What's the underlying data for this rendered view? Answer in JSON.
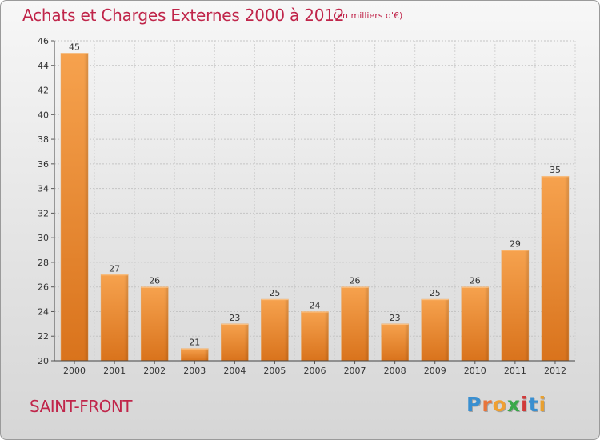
{
  "header": {
    "title": "Achats et Charges Externes 2000 à 2012",
    "unit": "(en milliers d'€)"
  },
  "footer": {
    "place": "SAINT-FRONT",
    "logo_text": "Proxiti"
  },
  "logo_colors": [
    "#3a8fd0",
    "#e8743b",
    "#f0a030",
    "#3aa84a",
    "#d03a3a",
    "#3a8fd0",
    "#e8a030"
  ],
  "chart_data": {
    "type": "bar",
    "title": "Achats et Charges Externes 2000 à 2012",
    "subtitle": "(en milliers d'€)",
    "categories": [
      "2000",
      "2001",
      "2002",
      "2003",
      "2004",
      "2005",
      "2006",
      "2007",
      "2008",
      "2009",
      "2010",
      "2011",
      "2012"
    ],
    "values": [
      45,
      27,
      26,
      21,
      23,
      25,
      24,
      26,
      23,
      25,
      26,
      29,
      35
    ],
    "ylim": [
      20,
      46
    ],
    "yticks": [
      20,
      22,
      24,
      26,
      28,
      30,
      32,
      34,
      36,
      38,
      40,
      42,
      44,
      46
    ],
    "grid": true,
    "bar_color": "#f39c42"
  }
}
